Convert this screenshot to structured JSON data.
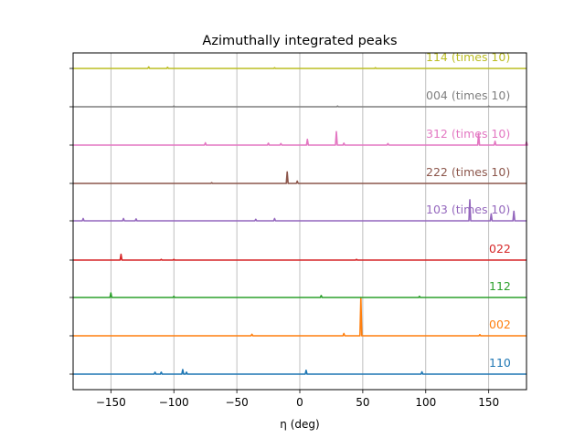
{
  "chart_data": {
    "type": "line",
    "title": "Azimuthally integrated peaks",
    "xlabel": "η (deg)",
    "ylabel": "",
    "xlim": [
      -180,
      180
    ],
    "xticks": [
      -150,
      -100,
      -50,
      0,
      50,
      100,
      150
    ],
    "xtick_labels": [
      "−150",
      "−100",
      "−50",
      "0",
      "50",
      "100",
      "150"
    ],
    "grid": "vertical",
    "yticks_labeled": false,
    "series": [
      {
        "name": "110",
        "color": "#1f77b4",
        "peaks": [
          [
            -115,
            0.05
          ],
          [
            -110,
            0.05
          ],
          [
            -93,
            0.12
          ],
          [
            -90,
            0.05
          ],
          [
            5,
            0.1
          ],
          [
            97,
            0.06
          ]
        ]
      },
      {
        "name": "002",
        "color": "#ff7f0e",
        "peaks": [
          [
            -38,
            0.04
          ],
          [
            35,
            0.06
          ],
          [
            48.5,
            1.0
          ],
          [
            143,
            0.03
          ]
        ]
      },
      {
        "name": "112",
        "color": "#2ca02c",
        "peaks": [
          [
            -150,
            0.12
          ],
          [
            -100,
            0.03
          ],
          [
            17,
            0.05
          ],
          [
            95,
            0.03
          ]
        ]
      },
      {
        "name": "022",
        "color": "#d62728",
        "peaks": [
          [
            -142,
            0.15
          ],
          [
            -110,
            0.02
          ],
          [
            -100,
            0.02
          ],
          [
            45,
            0.02
          ]
        ]
      },
      {
        "name": "103 (times 10)",
        "color": "#9467bd",
        "peaks": [
          [
            -172,
            0.06
          ],
          [
            -140,
            0.06
          ],
          [
            -130,
            0.05
          ],
          [
            -35,
            0.04
          ],
          [
            -20,
            0.06
          ],
          [
            135,
            0.55
          ],
          [
            152,
            0.18
          ],
          [
            170,
            0.25
          ]
        ]
      },
      {
        "name": "222 (times 10)",
        "color": "#8c564b",
        "peaks": [
          [
            -10,
            0.3
          ],
          [
            -2,
            0.06
          ],
          [
            -70,
            0.02
          ]
        ]
      },
      {
        "name": "004 (times 10)",
        "color": "#7f7f7f",
        "peaks": [
          [
            -100,
            0.02
          ],
          [
            30,
            0.02
          ],
          [
            150,
            0.02
          ]
        ]
      },
      {
        "name": "312 (times 10)",
        "color": "#e377c2",
        "peaks": [
          [
            -75,
            0.06
          ],
          [
            -25,
            0.05
          ],
          [
            -15,
            0.04
          ],
          [
            6,
            0.15
          ],
          [
            29,
            0.35
          ],
          [
            35,
            0.05
          ],
          [
            70,
            0.04
          ],
          [
            142,
            0.3
          ],
          [
            155,
            0.1
          ],
          [
            180,
            0.08
          ]
        ]
      },
      {
        "name": "114 (times 10)",
        "color": "#bcbd22",
        "peaks": [
          [
            -120,
            0.04
          ],
          [
            -105,
            0.03
          ],
          [
            -20,
            0.02
          ],
          [
            60,
            0.02
          ]
        ]
      }
    ]
  }
}
